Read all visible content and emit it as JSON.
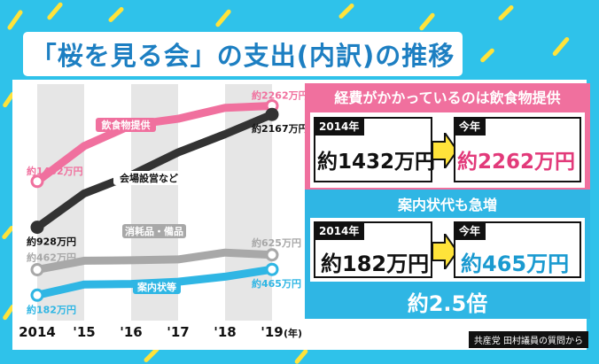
{
  "title": "「桜を見る会」の支出(内訳)の推移",
  "source": "共産党 田村議員の質問から",
  "colors": {
    "pink": "#f0709e",
    "dark": "#333333",
    "gray": "#a8a8a8",
    "blue": "#2fb6e4",
    "title": "#1d7fc2",
    "bg": "#2fc2ea",
    "confetti": "#ffe33a"
  },
  "chart_data": {
    "type": "line",
    "categories": [
      "2014",
      "'15",
      "'16",
      "'17",
      "'18",
      "'19"
    ],
    "x_unit": "(年)",
    "series": [
      {
        "name": "飲食物提供",
        "values": [
          1432,
          1820,
          2050,
          2120,
          2240,
          2262
        ],
        "color": "#f0709e"
      },
      {
        "name": "会場設営など",
        "values": [
          928,
          1300,
          1500,
          1750,
          1950,
          2167
        ],
        "color": "#333333"
      },
      {
        "name": "消耗品・備品",
        "values": [
          462,
          560,
          565,
          575,
          650,
          625
        ],
        "color": "#a8a8a8"
      },
      {
        "name": "案内状等",
        "values": [
          182,
          300,
          305,
          330,
          385,
          465
        ],
        "color": "#2fb6e4"
      }
    ],
    "labels": {
      "pink_start": "約1432万円",
      "pink_end": "約2262万円",
      "dark_start": "約928万円",
      "dark_end": "約2167万円",
      "gray_start": "約462万円",
      "gray_end": "約625万円",
      "blue_start": "約182万円",
      "blue_end": "約465万円"
    },
    "ylim": [
      0,
      2500
    ]
  },
  "callout_food": {
    "header": "経費がかかっているのは飲食物提供",
    "from_year": "2014年",
    "from_amount": "約1432万円",
    "to_year": "今年",
    "to_amount": "約2262万円"
  },
  "callout_invite": {
    "header": "案内状代も急増",
    "from_year": "2014年",
    "from_amount": "約182万円",
    "to_year": "今年",
    "to_amount": "約465万円",
    "multiplier": "約2.5倍"
  }
}
